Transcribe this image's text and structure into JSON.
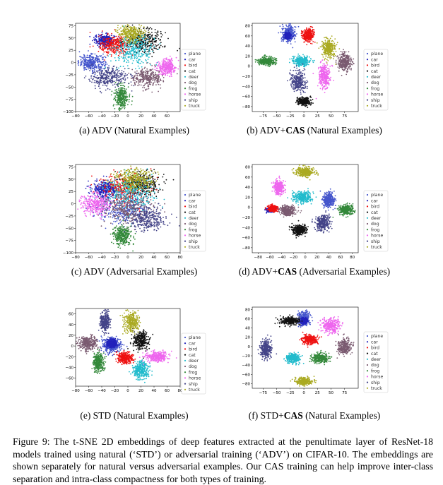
{
  "classes": [
    "plane",
    "car",
    "bird",
    "cat",
    "deer",
    "dog",
    "frog",
    "horse",
    "ship",
    "truck"
  ],
  "class_colors": [
    "#4455cc",
    "#2222bb",
    "#ee1111",
    "#111111",
    "#22bbcc",
    "#7a5a70",
    "#33883a",
    "#ee66ee",
    "#444488",
    "#aaaa22"
  ],
  "figure_caption": {
    "label": "Figure 9:",
    "text": " The t-SNE 2D embeddings of deep features extracted at the penultimate layer of ResNet-18 models trained using natural (‘STD’) or adversarial training (‘ADV’) on CIFAR-10. The embeddings are shown separately for natural versus adversarial examples. Our CAS training can help improve inter-class separation and intra-class compactness for both types of training."
  },
  "panels": [
    {
      "id": "a",
      "caption_prefix": "(a)  ADV",
      "caption_bold": "",
      "caption_suffix": " (Natural Examples)"
    },
    {
      "id": "b",
      "caption_prefix": "(b)  ADV+",
      "caption_bold": "CAS",
      "caption_suffix": " (Natural Examples)"
    },
    {
      "id": "c",
      "caption_prefix": "(c)  ADV",
      "caption_bold": "",
      "caption_suffix": " (Adversarial Examples)"
    },
    {
      "id": "d",
      "caption_prefix": "(d)  ADV+",
      "caption_bold": "CAS",
      "caption_suffix": " (Adversarial Examples)"
    },
    {
      "id": "e",
      "caption_prefix": "(e)  STD",
      "caption_bold": "",
      "caption_suffix": " (Natural Examples)"
    },
    {
      "id": "f",
      "caption_prefix": "(f)  STD+",
      "caption_bold": "CAS",
      "caption_suffix": " (Natural Examples)"
    }
  ],
  "chart_data": [
    {
      "type": "scatter",
      "title": "ADV (Natural Examples)",
      "xlim": [
        -80,
        80
      ],
      "ylim": [
        -100,
        80
      ],
      "xticks": [
        -80,
        -60,
        -40,
        -20,
        0,
        20,
        40,
        60
      ],
      "yticks": [
        75,
        50,
        25,
        0,
        -25,
        -50,
        -75,
        -100
      ],
      "legend": [
        "plane",
        "car",
        "bird",
        "cat",
        "deer",
        "dog",
        "frog",
        "horse",
        "ship",
        "truck"
      ],
      "clusters": [
        {
          "cls": "plane",
          "cx": -55,
          "cy": 0,
          "sx": 10,
          "sy": 8
        },
        {
          "cls": "car",
          "cx": -35,
          "cy": 45,
          "sx": 8,
          "sy": 6
        },
        {
          "cls": "bird",
          "cx": -20,
          "cy": 35,
          "sx": 12,
          "sy": 10
        },
        {
          "cls": "cat",
          "cx": 25,
          "cy": 45,
          "sx": 15,
          "sy": 12
        },
        {
          "cls": "deer",
          "cx": 10,
          "cy": 25,
          "sx": 15,
          "sy": 15
        },
        {
          "cls": "dog",
          "cx": 30,
          "cy": -30,
          "sx": 12,
          "sy": 10
        },
        {
          "cls": "frog",
          "cx": -10,
          "cy": -70,
          "sx": 5,
          "sy": 12
        },
        {
          "cls": "horse",
          "cx": 60,
          "cy": -10,
          "sx": 7,
          "sy": 8
        },
        {
          "cls": "ship",
          "cx": -30,
          "cy": -30,
          "sx": 15,
          "sy": 9
        },
        {
          "cls": "truck",
          "cx": 5,
          "cy": 60,
          "sx": 10,
          "sy": 8
        }
      ]
    },
    {
      "type": "scatter",
      "title": "ADV+CAS (Natural Examples)",
      "xlim": [
        -95,
        100
      ],
      "ylim": [
        -90,
        85
      ],
      "xticks": [
        -75,
        -50,
        -25,
        0,
        25,
        50,
        75
      ],
      "yticks": [
        80,
        60,
        40,
        20,
        0,
        -20,
        -40,
        -60,
        -80
      ],
      "legend": [
        "plane",
        "car",
        "bird",
        "cat",
        "deer",
        "dog",
        "frog",
        "horse",
        "ship",
        "truck"
      ],
      "clusters": [
        {
          "cls": "plane",
          "cx": -28,
          "cy": 65,
          "sx": 6,
          "sy": 8
        },
        {
          "cls": "car",
          "cx": -30,
          "cy": 60,
          "sx": 3,
          "sy": 3
        },
        {
          "cls": "bird",
          "cx": 8,
          "cy": 62,
          "sx": 5,
          "sy": 6
        },
        {
          "cls": "cat",
          "cx": 0,
          "cy": -70,
          "sx": 6,
          "sy": 4
        },
        {
          "cls": "deer",
          "cx": -5,
          "cy": 10,
          "sx": 8,
          "sy": 5
        },
        {
          "cls": "dog",
          "cx": 75,
          "cy": 8,
          "sx": 6,
          "sy": 9
        },
        {
          "cls": "frog",
          "cx": -68,
          "cy": 10,
          "sx": 8,
          "sy": 4
        },
        {
          "cls": "horse",
          "cx": 37,
          "cy": -20,
          "sx": 5,
          "sy": 12
        },
        {
          "cls": "ship",
          "cx": -10,
          "cy": -30,
          "sx": 7,
          "sy": 10
        },
        {
          "cls": "truck",
          "cx": 45,
          "cy": 35,
          "sx": 6,
          "sy": 8
        }
      ]
    },
    {
      "type": "scatter",
      "title": "ADV (Adversarial Examples)",
      "xlim": [
        -80,
        80
      ],
      "ylim": [
        -100,
        80
      ],
      "xticks": [
        -80,
        -60,
        -40,
        -20,
        0,
        20,
        40,
        60,
        80
      ],
      "yticks": [
        75,
        50,
        25,
        0,
        -25,
        -50,
        -75,
        -100
      ],
      "legend": [
        "plane",
        "car",
        "bird",
        "cat",
        "deer",
        "dog",
        "frog",
        "horse",
        "ship",
        "truck"
      ],
      "clusters": [
        {
          "cls": "plane",
          "cx": -10,
          "cy": -10,
          "sx": 20,
          "sy": 15
        },
        {
          "cls": "car",
          "cx": -35,
          "cy": 30,
          "sx": 10,
          "sy": 8
        },
        {
          "cls": "bird",
          "cx": -5,
          "cy": 30,
          "sx": 18,
          "sy": 15
        },
        {
          "cls": "cat",
          "cx": 20,
          "cy": 40,
          "sx": 15,
          "sy": 12
        },
        {
          "cls": "deer",
          "cx": 5,
          "cy": 20,
          "sx": 20,
          "sy": 18
        },
        {
          "cls": "dog",
          "cx": 0,
          "cy": -10,
          "sx": 20,
          "sy": 15
        },
        {
          "cls": "frog",
          "cx": -10,
          "cy": -65,
          "sx": 7,
          "sy": 10
        },
        {
          "cls": "horse",
          "cx": -50,
          "cy": 0,
          "sx": 12,
          "sy": 10
        },
        {
          "cls": "ship",
          "cx": 30,
          "cy": -30,
          "sx": 15,
          "sy": 12
        },
        {
          "cls": "truck",
          "cx": 10,
          "cy": 50,
          "sx": 15,
          "sy": 12
        }
      ]
    },
    {
      "type": "scatter",
      "title": "ADV+CAS (Adversarial Examples)",
      "xlim": [
        -90,
        90
      ],
      "ylim": [
        -90,
        85
      ],
      "xticks": [
        -80,
        -60,
        -40,
        -20,
        0,
        20,
        40,
        60,
        80
      ],
      "yticks": [
        80,
        60,
        40,
        20,
        0,
        -20,
        -40,
        -60,
        -80
      ],
      "legend": [
        "plane",
        "car",
        "bird",
        "cat",
        "deer",
        "dog",
        "frog",
        "horse",
        "ship",
        "truck"
      ],
      "clusters": [
        {
          "cls": "plane",
          "cx": 40,
          "cy": 15,
          "sx": 5,
          "sy": 8
        },
        {
          "cls": "car",
          "cx": -60,
          "cy": -5,
          "sx": 3,
          "sy": 2
        },
        {
          "cls": "bird",
          "cx": -55,
          "cy": -2,
          "sx": 4,
          "sy": 3
        },
        {
          "cls": "cat",
          "cx": -10,
          "cy": -45,
          "sx": 6,
          "sy": 5
        },
        {
          "cls": "deer",
          "cx": -5,
          "cy": 20,
          "sx": 8,
          "sy": 6
        },
        {
          "cls": "dog",
          "cx": -30,
          "cy": -7,
          "sx": 6,
          "sy": 5
        },
        {
          "cls": "frog",
          "cx": 70,
          "cy": -5,
          "sx": 6,
          "sy": 5
        },
        {
          "cls": "horse",
          "cx": -45,
          "cy": 40,
          "sx": 4,
          "sy": 7
        },
        {
          "cls": "ship",
          "cx": 30,
          "cy": -30,
          "sx": 6,
          "sy": 8
        },
        {
          "cls": "truck",
          "cx": 0,
          "cy": 70,
          "sx": 8,
          "sy": 5
        }
      ]
    },
    {
      "type": "scatter",
      "title": "STD (Natural Examples)",
      "xlim": [
        -80,
        80
      ],
      "ylim": [
        -75,
        70
      ],
      "xticks": [
        -80,
        -60,
        -40,
        -20,
        0,
        20,
        40,
        60,
        80
      ],
      "yticks": [
        60,
        40,
        20,
        0,
        -20,
        -40,
        -60
      ],
      "legend": [
        "plane",
        "car",
        "bird",
        "cat",
        "deer",
        "dog",
        "frog",
        "horse",
        "ship",
        "truck"
      ],
      "clusters": [
        {
          "cls": "plane",
          "cx": -25,
          "cy": 2,
          "sx": 7,
          "sy": 7
        },
        {
          "cls": "car",
          "cx": -25,
          "cy": 5,
          "sx": 4,
          "sy": 4
        },
        {
          "cls": "bird",
          "cx": -5,
          "cy": -22,
          "sx": 6,
          "sy": 5
        },
        {
          "cls": "cat",
          "cx": 20,
          "cy": 10,
          "sx": 6,
          "sy": 9
        },
        {
          "cls": "deer",
          "cx": 20,
          "cy": -45,
          "sx": 6,
          "sy": 8
        },
        {
          "cls": "dog",
          "cx": -62,
          "cy": 5,
          "sx": 8,
          "sy": 6
        },
        {
          "cls": "frog",
          "cx": -45,
          "cy": -30,
          "sx": 4,
          "sy": 9
        },
        {
          "cls": "horse",
          "cx": 45,
          "cy": -20,
          "sx": 8,
          "sy": 5
        },
        {
          "cls": "ship",
          "cx": -35,
          "cy": 45,
          "sx": 4,
          "sy": 9
        },
        {
          "cls": "truck",
          "cx": 5,
          "cy": 45,
          "sx": 6,
          "sy": 9
        }
      ]
    },
    {
      "type": "scatter",
      "title": "STD+CAS (Natural Examples)",
      "xlim": [
        -95,
        100
      ],
      "ylim": [
        -90,
        85
      ],
      "xticks": [
        -75,
        -50,
        -25,
        0,
        25,
        50,
        75
      ],
      "yticks": [
        80,
        60,
        40,
        20,
        0,
        -20,
        -40,
        -60,
        -80
      ],
      "legend": [
        "plane",
        "car",
        "bird",
        "cat",
        "deer",
        "dog",
        "frog",
        "horse",
        "ship",
        "truck"
      ],
      "clusters": [
        {
          "cls": "plane",
          "cx": 0,
          "cy": 60,
          "sx": 5,
          "sy": 8
        },
        {
          "cls": "car",
          "cx": 0,
          "cy": 55,
          "sx": 3,
          "sy": 3
        },
        {
          "cls": "bird",
          "cx": 10,
          "cy": 15,
          "sx": 7,
          "sy": 5
        },
        {
          "cls": "cat",
          "cx": -25,
          "cy": 55,
          "sx": 9,
          "sy": 4
        },
        {
          "cls": "deer",
          "cx": -20,
          "cy": -25,
          "sx": 7,
          "sy": 5
        },
        {
          "cls": "dog",
          "cx": 75,
          "cy": 0,
          "sx": 6,
          "sy": 8
        },
        {
          "cls": "frog",
          "cx": 30,
          "cy": -25,
          "sx": 8,
          "sy": 5
        },
        {
          "cls": "horse",
          "cx": 50,
          "cy": 45,
          "sx": 8,
          "sy": 8
        },
        {
          "cls": "ship",
          "cx": -70,
          "cy": -5,
          "sx": 5,
          "sy": 10
        },
        {
          "cls": "truck",
          "cx": 0,
          "cy": -75,
          "sx": 7,
          "sy": 4
        }
      ]
    }
  ]
}
